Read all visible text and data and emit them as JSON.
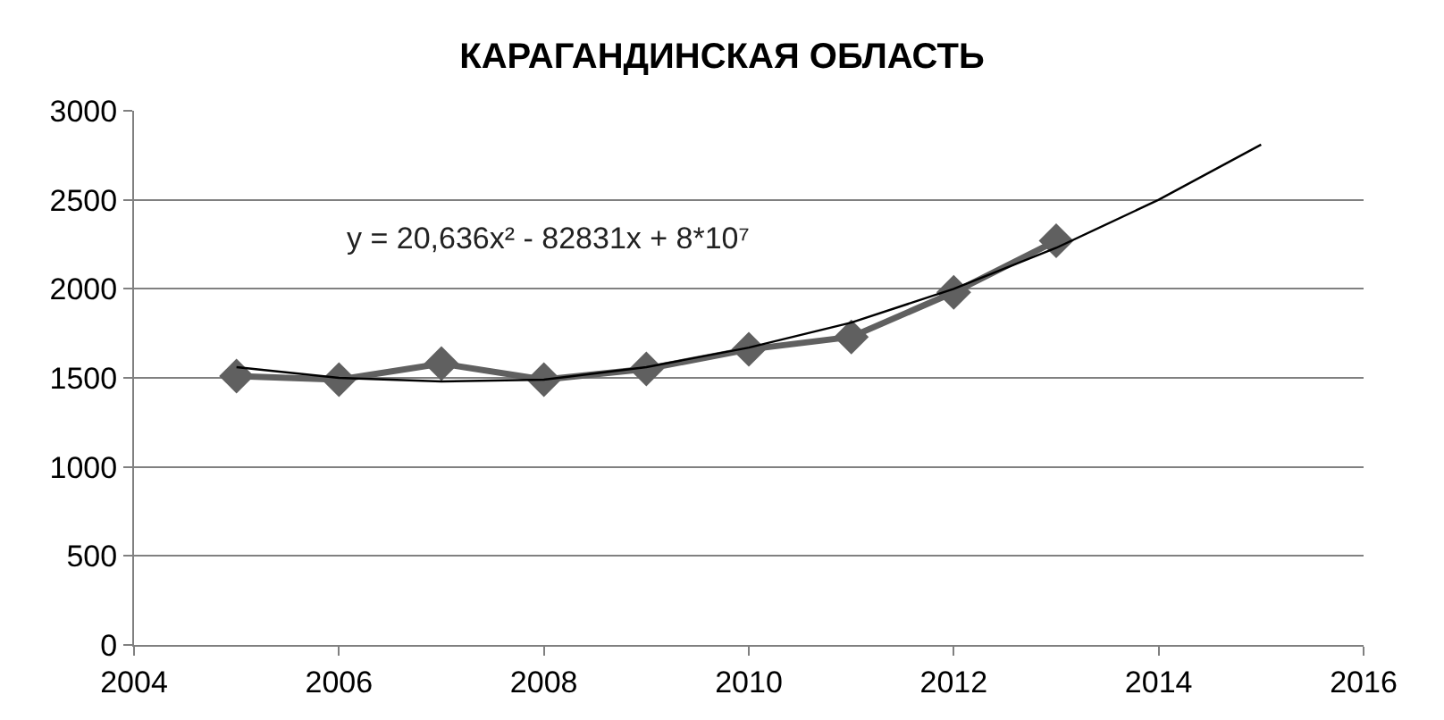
{
  "chart_data": {
    "type": "line",
    "title": "КАРАГАНДИНСКАЯ ОБЛАСТЬ",
    "annotations": [
      "y = 20,636x² - 82831x + 8*10⁷"
    ],
    "x": [
      2005,
      2006,
      2007,
      2008,
      2009,
      2010,
      2011,
      2012,
      2013
    ],
    "series": [
      {
        "color": "#606060",
        "values": [
          1510,
          1490,
          1580,
          1490,
          1550,
          1660,
          1730,
          1980,
          2270
        ],
        "marker": "diamond"
      },
      {
        "type": "line",
        "color": "#000000",
        "marker": "none",
        "x": [
          2005,
          2006,
          2007,
          2008,
          2009,
          2010,
          2011,
          2012,
          2013,
          2014,
          2015
        ],
        "values": [
          1560,
          1500,
          1480,
          1490,
          1560,
          1670,
          1810,
          2000,
          2230,
          2500,
          2810
        ]
      }
    ],
    "xlim": [
      2004,
      2016
    ],
    "xticks": [
      2004,
      2006,
      2008,
      2010,
      2012,
      2014,
      2016
    ],
    "ylim": [
      0,
      3000
    ],
    "yticks": [
      0,
      500,
      1000,
      1500,
      2000,
      2500,
      3000
    ],
    "grid": "y",
    "line_style": "solid"
  }
}
